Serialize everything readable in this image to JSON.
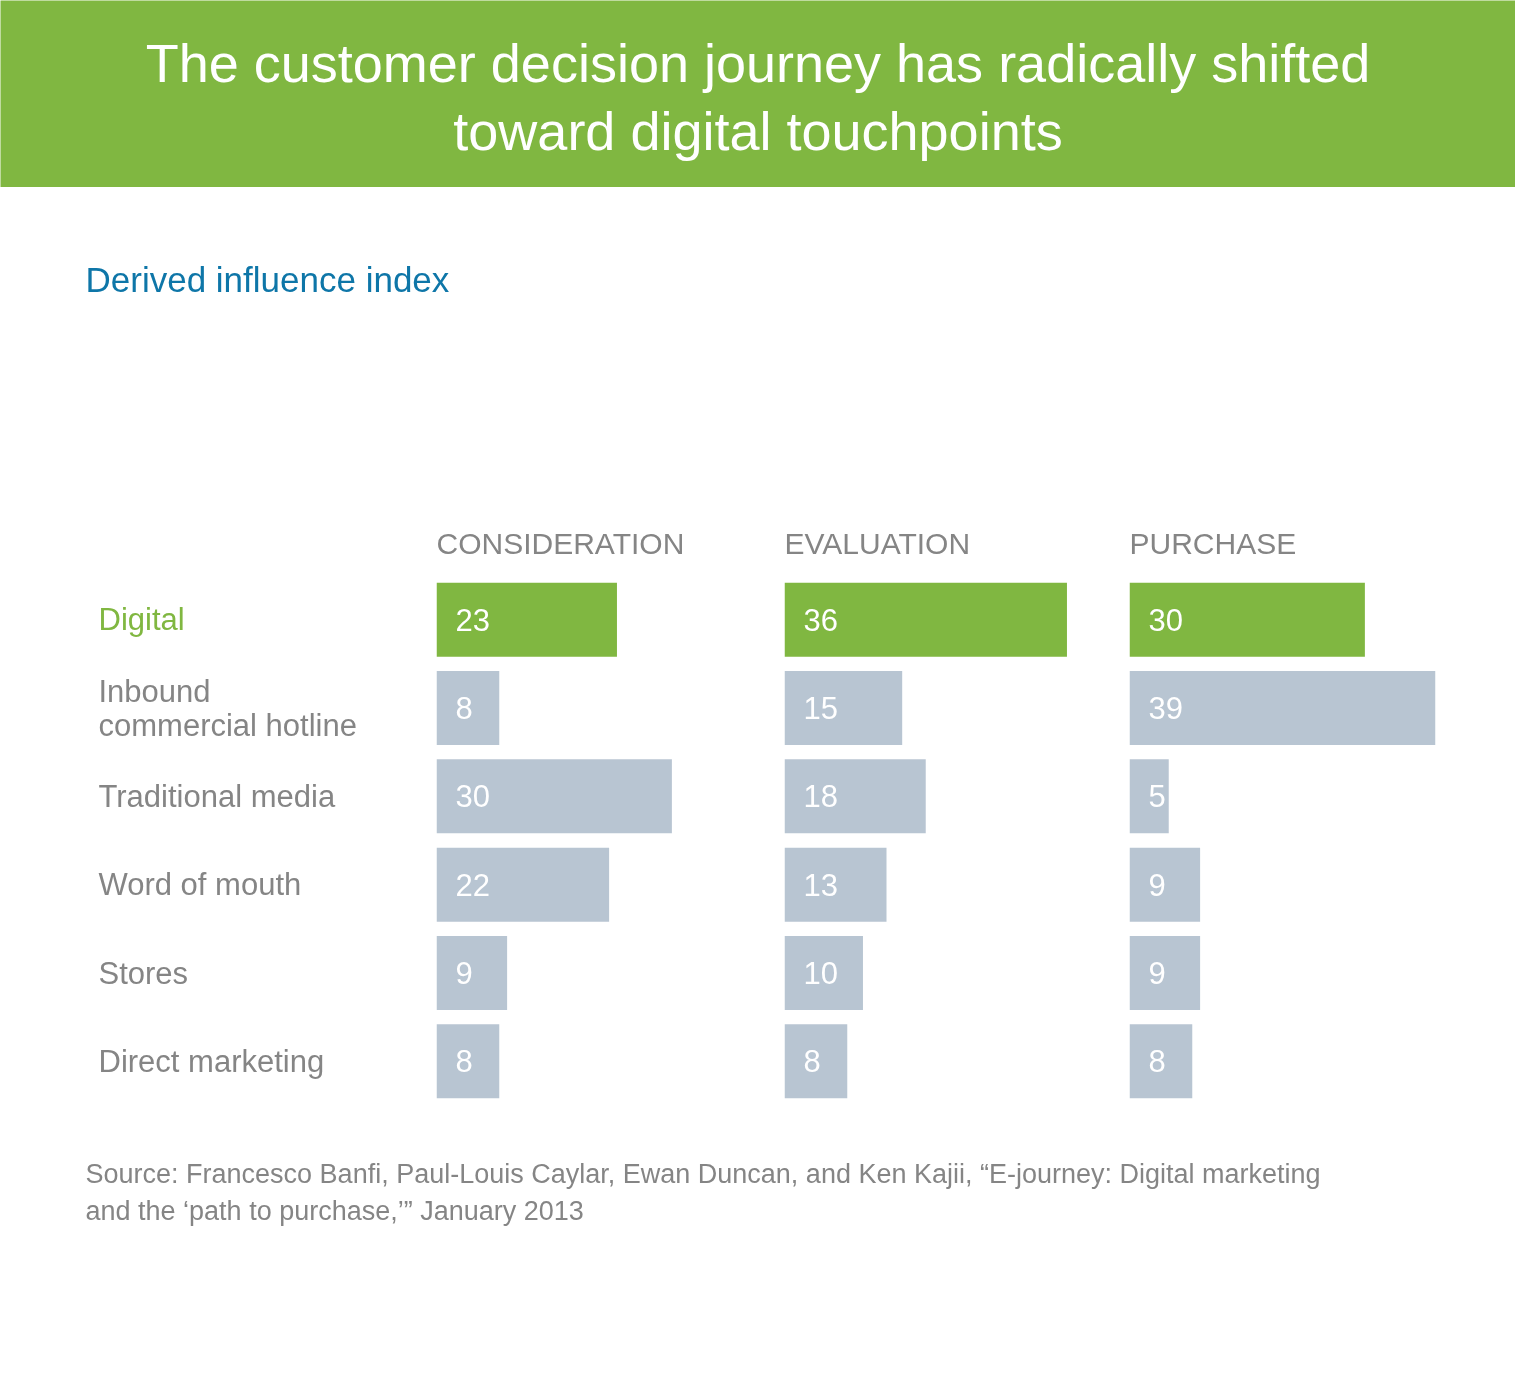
{
  "chart_data": [
    {
      "type": "other",
      "title": "The customer decision journey has radically shifted toward digital touchpoints",
      "subtitle": "Derived influence index",
      "annotations": [
        "Source: Francesco Banfi, Paul-Louis Caylar, Ewan Duncan, and Ken Kajii, “E-journey: Digital marketing and the ‘path to purchase,’” January 2013"
      ]
    },
    {
      "type": "bar",
      "orientation": "horizontal",
      "title": "CONSIDERATION",
      "categories": [
        "Digital",
        "Inbound commercial hotline",
        "Traditional media",
        "Word of mouth",
        "Stores",
        "Direct marketing"
      ],
      "values": [
        23,
        8,
        30,
        22,
        9,
        8
      ],
      "colors": [
        "#80b741",
        "#b8c5d2",
        "#b8c5d2",
        "#b8c5d2",
        "#b8c5d2",
        "#b8c5d2"
      ],
      "data_labels": true,
      "tick_labels": "y"
    },
    {
      "type": "bar",
      "orientation": "horizontal",
      "title": "EVALUATION",
      "categories": [
        "Digital",
        "Inbound commercial hotline",
        "Traditional media",
        "Word of mouth",
        "Stores",
        "Direct marketing"
      ],
      "values": [
        36,
        15,
        18,
        13,
        10,
        8
      ],
      "colors": [
        "#80b741",
        "#b8c5d2",
        "#b8c5d2",
        "#b8c5d2",
        "#b8c5d2",
        "#b8c5d2"
      ],
      "data_labels": true,
      "tick_labels": false
    },
    {
      "type": "bar",
      "orientation": "horizontal",
      "title": "PURCHASE",
      "categories": [
        "Digital",
        "Inbound commercial hotline",
        "Traditional media",
        "Word of mouth",
        "Stores",
        "Direct marketing"
      ],
      "values": [
        30,
        39,
        5,
        9,
        9,
        8
      ],
      "colors": [
        "#80b741",
        "#b8c5d2",
        "#b8c5d2",
        "#b8c5d2",
        "#b8c5d2",
        "#b8c5d2"
      ],
      "data_labels": true,
      "tick_labels": false
    }
  ]
}
